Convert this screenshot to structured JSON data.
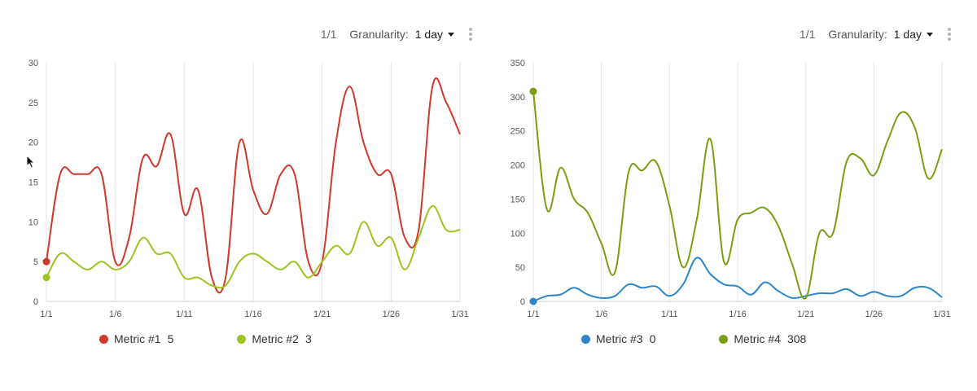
{
  "panels": [
    {
      "toolbar": {
        "page": "1/1",
        "granularity_label": "Granularity:",
        "granularity_value": "1 day"
      },
      "legend": [
        {
          "name": "Metric #1",
          "value": "5",
          "color": "#d0392b"
        },
        {
          "name": "Metric #2",
          "value": "3",
          "color": "#9dc420"
        }
      ]
    },
    {
      "toolbar": {
        "page": "1/1",
        "granularity_label": "Granularity:",
        "granularity_value": "1 day"
      },
      "legend": [
        {
          "name": "Metric #3",
          "value": "0",
          "color": "#2a86c8"
        },
        {
          "name": "Metric #4",
          "value": "308",
          "color": "#7a9e12"
        }
      ]
    }
  ],
  "chart_data": [
    {
      "type": "line",
      "x": [
        1,
        2,
        3,
        4,
        5,
        6,
        7,
        8,
        9,
        10,
        11,
        12,
        13,
        14,
        15,
        16,
        17,
        18,
        19,
        20,
        21,
        22,
        23,
        24,
        25,
        26,
        27,
        28,
        29,
        30,
        31
      ],
      "x_ticks": [
        "1/1",
        "1/6",
        "1/11",
        "1/16",
        "1/21",
        "1/26",
        "1/31"
      ],
      "y_ticks": [
        "0",
        "5",
        "10",
        "15",
        "20",
        "25",
        "30"
      ],
      "ylim": [
        0,
        30
      ],
      "grid": "vertical",
      "series": [
        {
          "name": "Metric #1",
          "color": "#d0392b",
          "values": [
            5,
            16,
            16,
            16,
            16,
            5,
            8,
            18,
            17,
            21,
            11,
            14,
            3,
            3,
            20,
            14,
            11,
            16,
            16,
            5,
            5,
            20,
            27,
            20,
            16,
            16,
            8,
            9,
            27,
            25,
            21
          ]
        },
        {
          "name": "Metric #2",
          "color": "#9dc420",
          "values": [
            3,
            6,
            5,
            4,
            5,
            4,
            5,
            8,
            6,
            6,
            3,
            3,
            2,
            2,
            5,
            6,
            5,
            4,
            5,
            3,
            5,
            7,
            6,
            10,
            7,
            8,
            4,
            8,
            12,
            9,
            9
          ]
        }
      ]
    },
    {
      "type": "line",
      "x": [
        1,
        2,
        3,
        4,
        5,
        6,
        7,
        8,
        9,
        10,
        11,
        12,
        13,
        14,
        15,
        16,
        17,
        18,
        19,
        20,
        21,
        22,
        23,
        24,
        25,
        26,
        27,
        28,
        29,
        30,
        31
      ],
      "x_ticks": [
        "1/1",
        "1/6",
        "1/11",
        "1/16",
        "1/21",
        "1/26",
        "1/31"
      ],
      "y_ticks": [
        "0",
        "50",
        "100",
        "150",
        "200",
        "250",
        "300",
        "350"
      ],
      "ylim": [
        0,
        350
      ],
      "grid": "vertical",
      "series": [
        {
          "name": "Metric #3",
          "color": "#2a86c8",
          "values": [
            0,
            8,
            10,
            20,
            10,
            5,
            8,
            25,
            20,
            22,
            8,
            25,
            64,
            40,
            25,
            22,
            10,
            28,
            15,
            5,
            8,
            12,
            12,
            18,
            8,
            14,
            8,
            8,
            20,
            20,
            6
          ]
        },
        {
          "name": "Metric #4",
          "color": "#7a9e12",
          "values": [
            308,
            135,
            196,
            150,
            130,
            85,
            43,
            190,
            192,
            205,
            140,
            50,
            120,
            238,
            58,
            120,
            130,
            137,
            110,
            55,
            5,
            100,
            100,
            205,
            210,
            185,
            235,
            277,
            255,
            180,
            223
          ]
        }
      ]
    }
  ]
}
